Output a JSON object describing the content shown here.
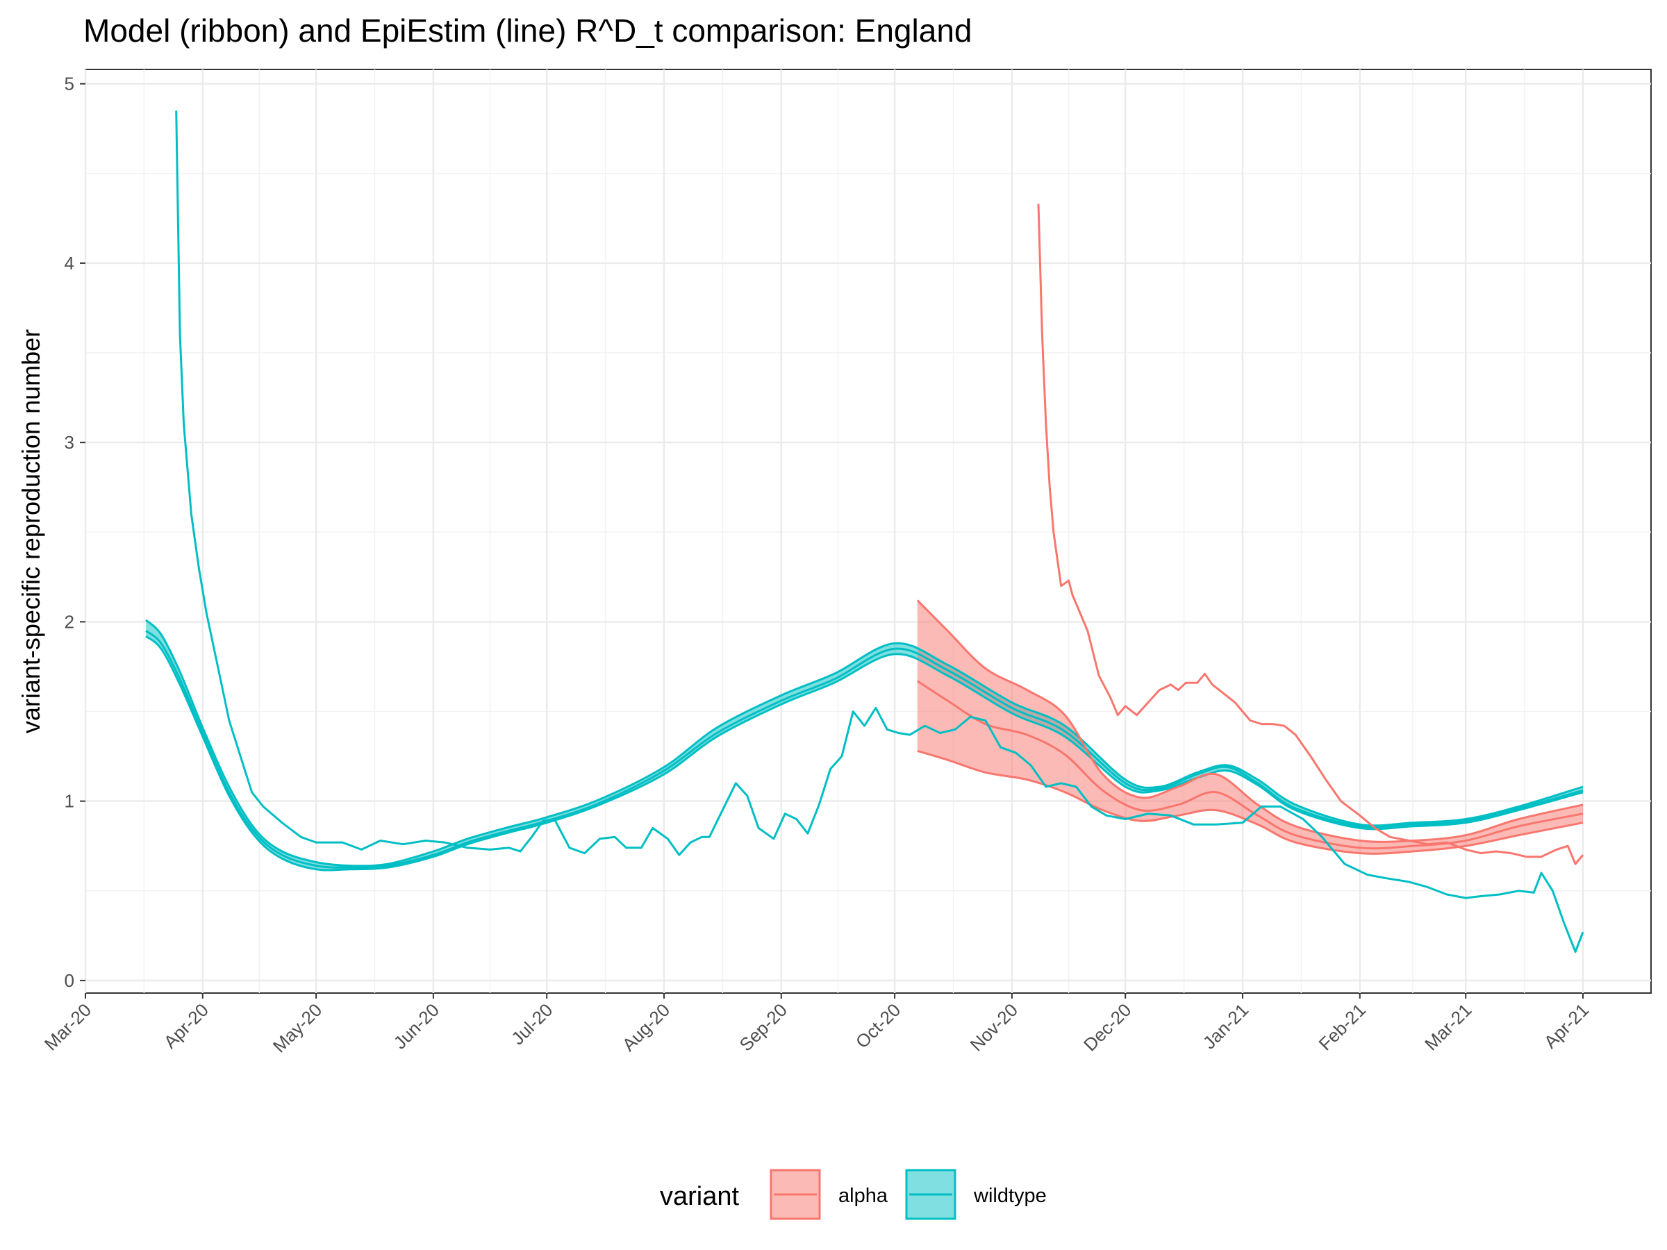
{
  "chart_data": {
    "type": "line",
    "title": "Model (ribbon) and EpiEstim (line) R^D_t comparison: England",
    "xlabel": "",
    "ylabel": "variant-specific reproduction number",
    "x_tick_labels": [
      "Mar-20",
      "Apr-20",
      "May-20",
      "Jun-20",
      "Jul-20",
      "Aug-20",
      "Sep-20",
      "Oct-20",
      "Nov-20",
      "Dec-20",
      "Jan-21",
      "Feb-21",
      "Mar-21",
      "Apr-21"
    ],
    "x_tick_dates": [
      "2020-03-01",
      "2020-04-01",
      "2020-05-01",
      "2020-06-01",
      "2020-07-01",
      "2020-08-01",
      "2020-09-01",
      "2020-10-01",
      "2020-11-01",
      "2020-12-01",
      "2021-01-01",
      "2021-02-01",
      "2021-03-01",
      "2021-04-01"
    ],
    "xlim": [
      "2020-03-01",
      "2021-04-19"
    ],
    "ylim": [
      -0.07,
      5.08
    ],
    "y_ticks": [
      0,
      1,
      2,
      3,
      4,
      5
    ],
    "grid": true,
    "legend": {
      "title": "variant",
      "position": "bottom",
      "entries": [
        {
          "label": "alpha",
          "color": "#F8766D"
        },
        {
          "label": "wildtype",
          "color": "#00BFC4"
        }
      ]
    },
    "series": [
      {
        "name": "wildtype",
        "kind": "model-ribbon",
        "color": "#00BFC4",
        "x": [
          "2020-03-17",
          "2020-03-21",
          "2020-03-26",
          "2020-04-01",
          "2020-04-08",
          "2020-04-15",
          "2020-04-22",
          "2020-05-01",
          "2020-05-10",
          "2020-05-20",
          "2020-06-01",
          "2020-06-10",
          "2020-06-20",
          "2020-07-01",
          "2020-07-15",
          "2020-08-01",
          "2020-08-15",
          "2020-09-01",
          "2020-09-15",
          "2020-10-01",
          "2020-10-15",
          "2020-11-01",
          "2020-11-15",
          "2020-12-01",
          "2020-12-10",
          "2020-12-20",
          "2020-12-28",
          "2021-01-05",
          "2021-01-15",
          "2021-02-01",
          "2021-02-15",
          "2021-03-01",
          "2021-03-15",
          "2021-04-01"
        ],
        "median": [
          1.95,
          1.88,
          1.68,
          1.38,
          1.05,
          0.82,
          0.7,
          0.64,
          0.63,
          0.64,
          0.7,
          0.77,
          0.83,
          0.89,
          0.99,
          1.17,
          1.38,
          1.56,
          1.68,
          1.85,
          1.73,
          1.52,
          1.39,
          1.1,
          1.07,
          1.15,
          1.19,
          1.1,
          0.96,
          0.86,
          0.87,
          0.89,
          0.96,
          1.06
        ],
        "lower": [
          1.92,
          1.85,
          1.65,
          1.36,
          1.03,
          0.8,
          0.68,
          0.62,
          0.62,
          0.63,
          0.69,
          0.76,
          0.82,
          0.88,
          0.98,
          1.15,
          1.36,
          1.54,
          1.66,
          1.82,
          1.7,
          1.49,
          1.36,
          1.08,
          1.06,
          1.13,
          1.17,
          1.09,
          0.95,
          0.85,
          0.86,
          0.88,
          0.95,
          1.05
        ],
        "upper": [
          2.01,
          1.93,
          1.72,
          1.41,
          1.08,
          0.84,
          0.72,
          0.66,
          0.64,
          0.65,
          0.72,
          0.79,
          0.85,
          0.91,
          1.01,
          1.19,
          1.41,
          1.59,
          1.71,
          1.88,
          1.76,
          1.55,
          1.42,
          1.12,
          1.08,
          1.16,
          1.2,
          1.12,
          0.98,
          0.87,
          0.88,
          0.9,
          0.97,
          1.08
        ]
      },
      {
        "name": "alpha",
        "kind": "model-ribbon",
        "color": "#F8766D",
        "x": [
          "2020-10-07",
          "2020-10-15",
          "2020-10-25",
          "2020-11-05",
          "2020-11-15",
          "2020-11-25",
          "2020-12-05",
          "2020-12-15",
          "2020-12-25",
          "2021-01-05",
          "2021-01-15",
          "2021-02-01",
          "2021-02-15",
          "2021-03-01",
          "2021-03-15",
          "2021-04-01"
        ],
        "median": [
          1.67,
          1.56,
          1.43,
          1.37,
          1.26,
          1.06,
          0.95,
          0.98,
          1.05,
          0.92,
          0.81,
          0.74,
          0.75,
          0.78,
          0.86,
          0.93
        ],
        "lower": [
          1.28,
          1.23,
          1.16,
          1.12,
          1.05,
          0.95,
          0.89,
          0.92,
          0.95,
          0.87,
          0.77,
          0.71,
          0.72,
          0.75,
          0.81,
          0.88
        ],
        "upper": [
          2.12,
          1.95,
          1.74,
          1.62,
          1.48,
          1.15,
          1.02,
          1.08,
          1.15,
          0.98,
          0.86,
          0.78,
          0.78,
          0.81,
          0.9,
          0.98
        ]
      },
      {
        "name": "wildtype",
        "kind": "EpiEstim-line",
        "color": "#00BFC4",
        "x": [
          "2020-03-25",
          "2020-03-26",
          "2020-03-27",
          "2020-03-28",
          "2020-03-29",
          "2020-03-31",
          "2020-04-02",
          "2020-04-05",
          "2020-04-08",
          "2020-04-11",
          "2020-04-14",
          "2020-04-17",
          "2020-04-22",
          "2020-04-27",
          "2020-05-01",
          "2020-05-08",
          "2020-05-13",
          "2020-05-18",
          "2020-05-24",
          "2020-05-30",
          "2020-06-04",
          "2020-06-10",
          "2020-06-16",
          "2020-06-21",
          "2020-06-24",
          "2020-06-27",
          "2020-06-30",
          "2020-07-03",
          "2020-07-07",
          "2020-07-11",
          "2020-07-15",
          "2020-07-19",
          "2020-07-22",
          "2020-07-26",
          "2020-07-29",
          "2020-08-02",
          "2020-08-05",
          "2020-08-08",
          "2020-08-11",
          "2020-08-13",
          "2020-08-16",
          "2020-08-20",
          "2020-08-23",
          "2020-08-26",
          "2020-08-30",
          "2020-09-02",
          "2020-09-05",
          "2020-09-08",
          "2020-09-11",
          "2020-09-14",
          "2020-09-17",
          "2020-09-20",
          "2020-09-23",
          "2020-09-26",
          "2020-09-29",
          "2020-10-02",
          "2020-10-05",
          "2020-10-09",
          "2020-10-13",
          "2020-10-17",
          "2020-10-21",
          "2020-10-25",
          "2020-10-29",
          "2020-11-02",
          "2020-11-06",
          "2020-11-10",
          "2020-11-14",
          "2020-11-18",
          "2020-11-22",
          "2020-11-26",
          "2020-12-01",
          "2020-12-07",
          "2020-12-13",
          "2020-12-19",
          "2020-12-25",
          "2021-01-01",
          "2021-01-06",
          "2021-01-11",
          "2021-01-17",
          "2021-01-22",
          "2021-01-28",
          "2021-02-03",
          "2021-02-08",
          "2021-02-14",
          "2021-02-19",
          "2021-02-24",
          "2021-03-01",
          "2021-03-05",
          "2021-03-10",
          "2021-03-15",
          "2021-03-19",
          "2021-03-21",
          "2021-03-24",
          "2021-03-27",
          "2021-03-30",
          "2021-04-01"
        ],
        "y": [
          4.85,
          3.6,
          3.1,
          2.85,
          2.6,
          2.3,
          2.05,
          1.75,
          1.45,
          1.25,
          1.05,
          0.97,
          0.88,
          0.8,
          0.77,
          0.77,
          0.73,
          0.78,
          0.76,
          0.78,
          0.77,
          0.74,
          0.73,
          0.74,
          0.72,
          0.8,
          0.89,
          0.9,
          0.74,
          0.71,
          0.79,
          0.8,
          0.74,
          0.74,
          0.85,
          0.79,
          0.7,
          0.77,
          0.8,
          0.8,
          0.93,
          1.1,
          1.03,
          0.85,
          0.79,
          0.93,
          0.9,
          0.82,
          0.98,
          1.18,
          1.25,
          1.5,
          1.42,
          1.52,
          1.4,
          1.38,
          1.37,
          1.42,
          1.38,
          1.4,
          1.47,
          1.45,
          1.3,
          1.27,
          1.2,
          1.08,
          1.1,
          1.08,
          0.97,
          0.92,
          0.9,
          0.93,
          0.92,
          0.87,
          0.87,
          0.88,
          0.97,
          0.97,
          0.9,
          0.8,
          0.65,
          0.59,
          0.57,
          0.55,
          0.52,
          0.48,
          0.46,
          0.47,
          0.48,
          0.5,
          0.49,
          0.6,
          0.5,
          0.32,
          0.16,
          0.27
        ]
      },
      {
        "name": "alpha",
        "kind": "EpiEstim-line",
        "color": "#F8766D",
        "x": [
          "2020-11-08",
          "2020-11-09",
          "2020-11-10",
          "2020-11-11",
          "2020-11-12",
          "2020-11-14",
          "2020-11-16",
          "2020-11-17",
          "2020-11-19",
          "2020-11-21",
          "2020-11-24",
          "2020-11-27",
          "2020-11-29",
          "2020-12-01",
          "2020-12-04",
          "2020-12-07",
          "2020-12-10",
          "2020-12-13",
          "2020-12-15",
          "2020-12-17",
          "2020-12-20",
          "2020-12-22",
          "2020-12-24",
          "2020-12-27",
          "2020-12-30",
          "2021-01-03",
          "2021-01-06",
          "2021-01-09",
          "2021-01-12",
          "2021-01-15",
          "2021-01-19",
          "2021-01-23",
          "2021-01-27",
          "2021-02-01",
          "2021-02-05",
          "2021-02-09",
          "2021-02-14",
          "2021-02-19",
          "2021-02-24",
          "2021-03-01",
          "2021-03-05",
          "2021-03-09",
          "2021-03-13",
          "2021-03-17",
          "2021-03-21",
          "2021-03-25",
          "2021-03-28",
          "2021-03-30",
          "2021-04-01"
        ],
        "y": [
          4.33,
          3.6,
          3.1,
          2.75,
          2.5,
          2.2,
          2.23,
          2.15,
          2.05,
          1.95,
          1.7,
          1.58,
          1.48,
          1.53,
          1.48,
          1.55,
          1.62,
          1.65,
          1.62,
          1.66,
          1.66,
          1.71,
          1.65,
          1.6,
          1.55,
          1.45,
          1.43,
          1.43,
          1.42,
          1.37,
          1.25,
          1.12,
          1.0,
          0.92,
          0.85,
          0.8,
          0.78,
          0.76,
          0.77,
          0.73,
          0.71,
          0.72,
          0.71,
          0.69,
          0.69,
          0.73,
          0.75,
          0.65,
          0.7
        ]
      }
    ]
  }
}
